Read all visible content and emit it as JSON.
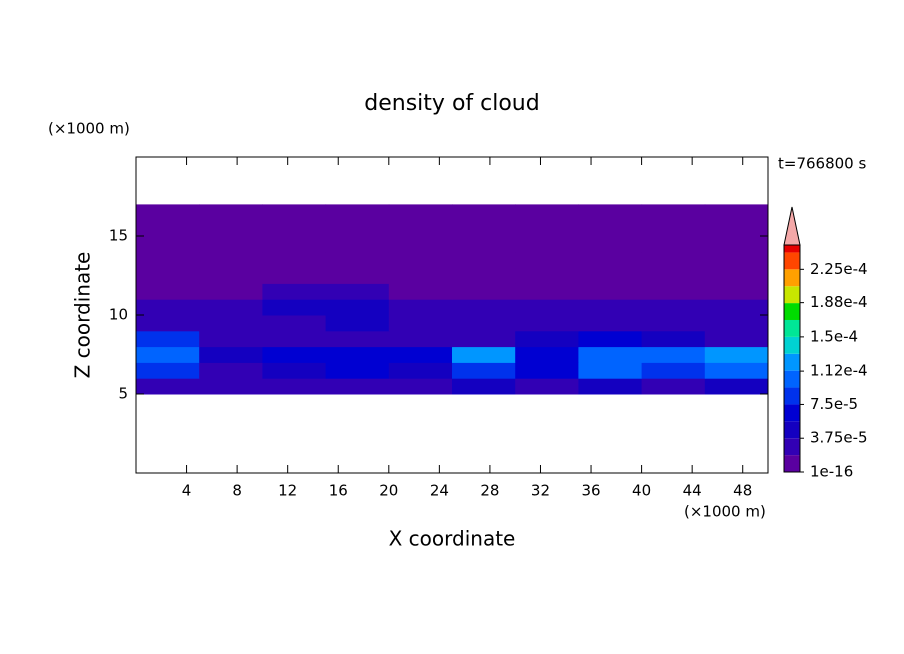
{
  "chart_data": {
    "type": "contour",
    "title": "density of cloud",
    "x_label": "X coordinate",
    "y_label": "Z coordinate",
    "x_unit": "(×1000 m)",
    "y_unit": "(×1000 m)",
    "time_label": "t=766800 s",
    "xlim": [
      0,
      50
    ],
    "ylim": [
      0,
      20
    ],
    "xticks": [
      4,
      8,
      12,
      16,
      20,
      24,
      28,
      32,
      36,
      40,
      44,
      48
    ],
    "yticks": [
      5,
      10,
      15
    ],
    "field": {
      "x": [
        2.5,
        7.5,
        12.5,
        17.5,
        22.5,
        27.5,
        32.5,
        37.5,
        42.5,
        47.5
      ],
      "z": [
        5.5,
        6.5,
        7.5,
        8.5,
        9.5,
        10.5,
        11.5,
        12.5,
        13.5,
        14.5,
        15.5,
        16.5
      ],
      "values": [
        [
          3e-05,
          2e-05,
          3e-05,
          3e-05,
          3e-05,
          4e-05,
          3e-05,
          4e-05,
          3e-05,
          4e-05
        ],
        [
          9e-05,
          3e-05,
          5e-05,
          6e-05,
          5e-05,
          8e-05,
          6e-05,
          0.0001,
          8e-05,
          0.0001
        ],
        [
          0.00011,
          5e-05,
          6e-05,
          7e-05,
          6e-05,
          0.00012,
          7e-05,
          0.00011,
          0.0001,
          0.00012
        ],
        [
          8e-05,
          3e-05,
          2e-05,
          3e-05,
          2e-05,
          2e-05,
          4e-05,
          6e-05,
          4e-05,
          3e-05
        ],
        [
          2e-05,
          2e-05,
          3e-05,
          4e-05,
          3e-05,
          2e-05,
          2e-05,
          2e-05,
          2e-05,
          2e-05
        ],
        [
          2e-05,
          2e-05,
          4e-05,
          4e-05,
          2e-05,
          2e-05,
          2e-05,
          2e-05,
          2e-05,
          2e-05
        ],
        [
          1e-05,
          1e-05,
          2e-05,
          2e-05,
          1e-05,
          1e-05,
          1e-05,
          1e-05,
          1e-05,
          1e-05
        ],
        [
          1e-05,
          1e-05,
          1e-05,
          1e-05,
          1e-05,
          1e-05,
          1e-05,
          1e-05,
          1e-05,
          1e-05
        ],
        [
          1e-16,
          1e-16,
          1e-16,
          1e-16,
          1e-16,
          1e-16,
          1e-16,
          1e-16,
          1e-16,
          1e-16
        ],
        [
          1e-16,
          1e-16,
          1e-16,
          1e-16,
          1e-16,
          1e-16,
          1e-16,
          1e-16,
          1e-16,
          1e-16
        ],
        [
          1e-16,
          1e-16,
          1e-16,
          1e-16,
          1e-16,
          1e-16,
          1e-16,
          1e-16,
          1e-16,
          1e-16
        ],
        [
          1e-16,
          1e-16,
          1e-16,
          1e-16,
          1e-16,
          1e-16,
          1e-16,
          1e-16,
          1e-16,
          1e-16
        ]
      ]
    },
    "colorbar": {
      "clim": [
        1e-16,
        0.000252
      ],
      "levels": [
        1e-16,
        1.875e-05,
        3.75e-05,
        5.625e-05,
        7.5e-05,
        9.375e-05,
        0.0001125,
        0.00013125,
        0.00015,
        0.00016875,
        0.0001875,
        0.00020625,
        0.000225,
        0.00024375
      ],
      "colors": [
        "#5a00a0",
        "#3200b4",
        "#1400c0",
        "#0000d2",
        "#0032ec",
        "#0064ff",
        "#0096ff",
        "#00d2d2",
        "#00e696",
        "#00dc00",
        "#c8e600",
        "#ffa000",
        "#ff4600",
        "#e60000"
      ],
      "extend_color": "#f4a8a8",
      "ticks": [
        1e-16,
        {
          "value": 3.75e-05,
          "label": "3.75e-5"
        },
        {
          "value": 7.5e-05,
          "label": "7.5e-5"
        },
        {
          "value": 0.000112,
          "label": "1.12e-4"
        },
        {
          "value": 0.00015,
          "label": "1.5e-4"
        },
        {
          "value": 0.000188,
          "label": "1.88e-4"
        },
        {
          "value": 0.000225,
          "label": "2.25e-4"
        }
      ]
    }
  }
}
